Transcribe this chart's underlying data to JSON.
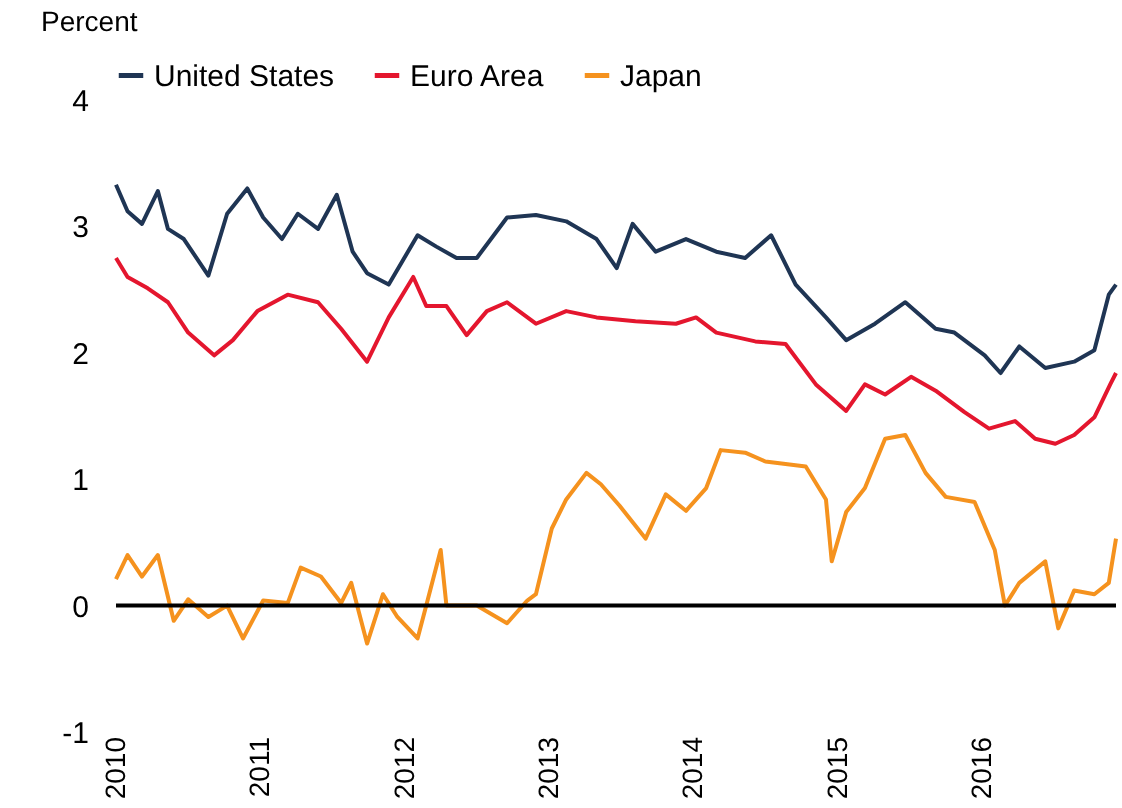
{
  "chart_data": {
    "type": "line",
    "ylabel": "Percent",
    "xlim": [
      2010,
      2016.93
    ],
    "xticks": [
      2010,
      2011,
      2012,
      2013,
      2014,
      2015,
      2016
    ],
    "ylim": [
      -1,
      4
    ],
    "yticks": [
      -1,
      0,
      1,
      2,
      3,
      4
    ],
    "grid": false,
    "legend": "top",
    "line_style": "solid",
    "marker": "none",
    "ref_lines": [
      {
        "axis": "y",
        "value": 0,
        "color": "#000000"
      }
    ],
    "series": [
      {
        "name": "United States",
        "color": "#1f3554",
        "x": [
          2010,
          2010.08,
          2010.18,
          2010.29,
          2010.36,
          2010.47,
          2010.64,
          2010.77,
          2010.91,
          2011.02,
          2011.15,
          2011.26,
          2011.4,
          2011.53,
          2011.64,
          2011.74,
          2011.89,
          2012.09,
          2012.22,
          2012.36,
          2012.5,
          2012.71,
          2012.91,
          2013.12,
          2013.33,
          2013.47,
          2013.58,
          2013.74,
          2013.95,
          2014.16,
          2014.36,
          2014.54,
          2014.71,
          2014.92,
          2015.06,
          2015.26,
          2015.47,
          2015.68,
          2015.81,
          2016.02,
          2016.13,
          2016.26,
          2016.44,
          2016.64,
          2016.78,
          2016.88,
          2016.93
        ],
        "values": [
          3.33,
          3.12,
          3.02,
          3.28,
          2.98,
          2.9,
          2.61,
          3.1,
          3.3,
          3.07,
          2.9,
          3.1,
          2.98,
          3.25,
          2.8,
          2.63,
          2.54,
          2.93,
          2.84,
          2.75,
          2.75,
          3.07,
          3.09,
          3.04,
          2.9,
          2.67,
          3.02,
          2.8,
          2.9,
          2.8,
          2.75,
          2.93,
          2.54,
          2.28,
          2.1,
          2.23,
          2.4,
          2.19,
          2.16,
          1.98,
          1.84,
          2.05,
          1.88,
          1.93,
          2.02,
          2.46,
          2.54
        ]
      },
      {
        "name": "Euro Area",
        "color": "#e4162e",
        "x": [
          2010,
          2010.08,
          2010.22,
          2010.36,
          2010.5,
          2010.68,
          2010.81,
          2010.98,
          2011.19,
          2011.4,
          2011.56,
          2011.74,
          2011.89,
          2012.06,
          2012.15,
          2012.29,
          2012.43,
          2012.57,
          2012.71,
          2012.91,
          2013.12,
          2013.33,
          2013.6,
          2013.88,
          2014.02,
          2014.16,
          2014.43,
          2014.64,
          2014.85,
          2015.06,
          2015.19,
          2015.33,
          2015.51,
          2015.68,
          2015.88,
          2016.05,
          2016.23,
          2016.37,
          2016.51,
          2016.64,
          2016.78,
          2016.89,
          2016.93
        ],
        "values": [
          2.75,
          2.6,
          2.51,
          2.4,
          2.16,
          1.98,
          2.1,
          2.33,
          2.46,
          2.4,
          2.19,
          1.93,
          2.28,
          2.6,
          2.37,
          2.37,
          2.14,
          2.33,
          2.4,
          2.23,
          2.33,
          2.28,
          2.25,
          2.23,
          2.28,
          2.16,
          2.09,
          2.07,
          1.75,
          1.54,
          1.75,
          1.67,
          1.81,
          1.7,
          1.53,
          1.4,
          1.46,
          1.32,
          1.28,
          1.35,
          1.49,
          1.75,
          1.84
        ]
      },
      {
        "name": "Japan",
        "color": "#f5921e",
        "x": [
          2010,
          2010.08,
          2010.18,
          2010.29,
          2010.4,
          2010.5,
          2010.64,
          2010.77,
          2010.88,
          2011.02,
          2011.19,
          2011.28,
          2011.42,
          2011.56,
          2011.63,
          2011.74,
          2011.85,
          2011.95,
          2012.09,
          2012.15,
          2012.25,
          2012.29,
          2012.5,
          2012.71,
          2012.85,
          2012.91,
          2013.02,
          2013.12,
          2013.26,
          2013.36,
          2013.49,
          2013.67,
          2013.81,
          2013.95,
          2014.09,
          2014.19,
          2014.36,
          2014.5,
          2014.78,
          2014.92,
          2014.96,
          2015.06,
          2015.19,
          2015.33,
          2015.47,
          2015.61,
          2015.75,
          2015.95,
          2016.09,
          2016.16,
          2016.26,
          2016.44,
          2016.53,
          2016.64,
          2016.78,
          2016.88,
          2016.93
        ],
        "values": [
          0.21,
          0.4,
          0.23,
          0.4,
          -0.12,
          0.05,
          -0.09,
          0,
          -0.26,
          0.04,
          0.02,
          0.3,
          0.23,
          0.02,
          0.18,
          -0.3,
          0.09,
          -0.09,
          -0.26,
          0,
          0.44,
          0,
          0,
          -0.14,
          0.04,
          0.09,
          0.61,
          0.84,
          1.05,
          0.96,
          0.79,
          0.53,
          0.88,
          0.75,
          0.93,
          1.23,
          1.21,
          1.14,
          1.1,
          0.84,
          0.35,
          0.74,
          0.93,
          1.32,
          1.35,
          1.05,
          0.86,
          0.82,
          0.44,
          0,
          0.18,
          0.35,
          -0.18,
          0.12,
          0.09,
          0.18,
          0.53
        ]
      }
    ]
  }
}
